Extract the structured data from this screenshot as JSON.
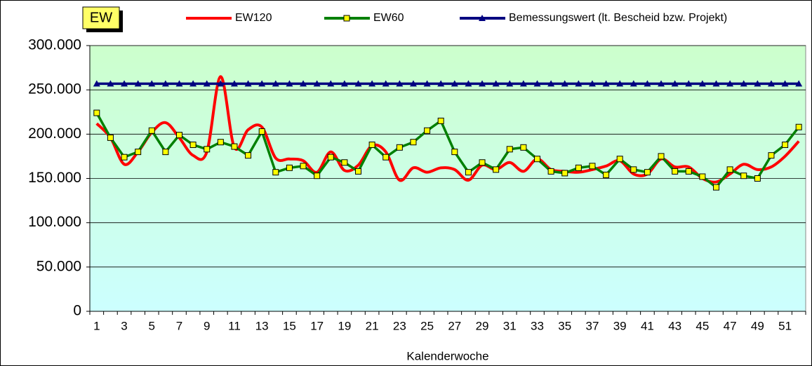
{
  "chart_data": {
    "type": "line",
    "y_label": "EW",
    "x_label": "Kalenderwoche",
    "categories": [
      1,
      null,
      3,
      null,
      5,
      null,
      7,
      null,
      9,
      null,
      11,
      null,
      13,
      null,
      15,
      null,
      17,
      null,
      19,
      null,
      21,
      null,
      23,
      null,
      25,
      null,
      27,
      null,
      29,
      null,
      31,
      null,
      33,
      null,
      35,
      null,
      37,
      null,
      39,
      null,
      41,
      null,
      43,
      null,
      45,
      null,
      47,
      null,
      49,
      null,
      51,
      null
    ],
    "series": [
      {
        "name": "EW120",
        "color": "#ff0000",
        "smooth": true,
        "values": [
          212000,
          196000,
          166000,
          180000,
          202000,
          213000,
          196000,
          176000,
          180000,
          265000,
          185000,
          205000,
          208000,
          173000,
          172000,
          170000,
          157000,
          180000,
          159000,
          165000,
          187000,
          180000,
          148000,
          162000,
          157000,
          162000,
          160000,
          148000,
          165000,
          160000,
          168000,
          158000,
          172000,
          160000,
          158000,
          157000,
          160000,
          164000,
          170000,
          155000,
          155000,
          172000,
          163000,
          163000,
          150000,
          146000,
          155000,
          166000,
          160000,
          163000,
          175000,
          192000
        ]
      },
      {
        "name": "EW60",
        "color": "#008000",
        "marker": "square",
        "marker_color": "#ffff00",
        "values": [
          224000,
          196000,
          174000,
          180000,
          204000,
          180000,
          199000,
          188000,
          183000,
          191000,
          186000,
          176000,
          203000,
          157000,
          162000,
          164000,
          153000,
          174000,
          168000,
          158000,
          188000,
          174000,
          185000,
          191000,
          204000,
          215000,
          180000,
          157000,
          168000,
          160000,
          183000,
          185000,
          172000,
          158000,
          156000,
          162000,
          164000,
          154000,
          172000,
          160000,
          157000,
          175000,
          158000,
          158000,
          152000,
          140000,
          160000,
          153000,
          150000,
          176000,
          188000,
          208000
        ]
      },
      {
        "name": "Bemessungswert (lt. Bescheid bzw. Projekt)",
        "color": "#000080",
        "marker": "triangle",
        "values": [
          257000,
          257000,
          257000,
          257000,
          257000,
          257000,
          257000,
          257000,
          257000,
          257000,
          257000,
          257000,
          257000,
          257000,
          257000,
          257000,
          257000,
          257000,
          257000,
          257000,
          257000,
          257000,
          257000,
          257000,
          257000,
          257000,
          257000,
          257000,
          257000,
          257000,
          257000,
          257000,
          257000,
          257000,
          257000,
          257000,
          257000,
          257000,
          257000,
          257000,
          257000,
          257000,
          257000,
          257000,
          257000,
          257000,
          257000,
          257000,
          257000,
          257000,
          257000,
          257000
        ]
      }
    ],
    "ylim": [
      0,
      300000
    ],
    "yticks": [
      0,
      {
        "value": 50000,
        "label": "50.000"
      },
      {
        "value": 100000,
        "label": "100.000"
      },
      {
        "value": 150000,
        "label": "150.000"
      },
      {
        "value": 200000,
        "label": "200.000"
      },
      {
        "value": 250000,
        "label": "250.000"
      },
      {
        "value": 300000,
        "label": "300.000"
      }
    ],
    "grid": true,
    "legend": "top"
  }
}
